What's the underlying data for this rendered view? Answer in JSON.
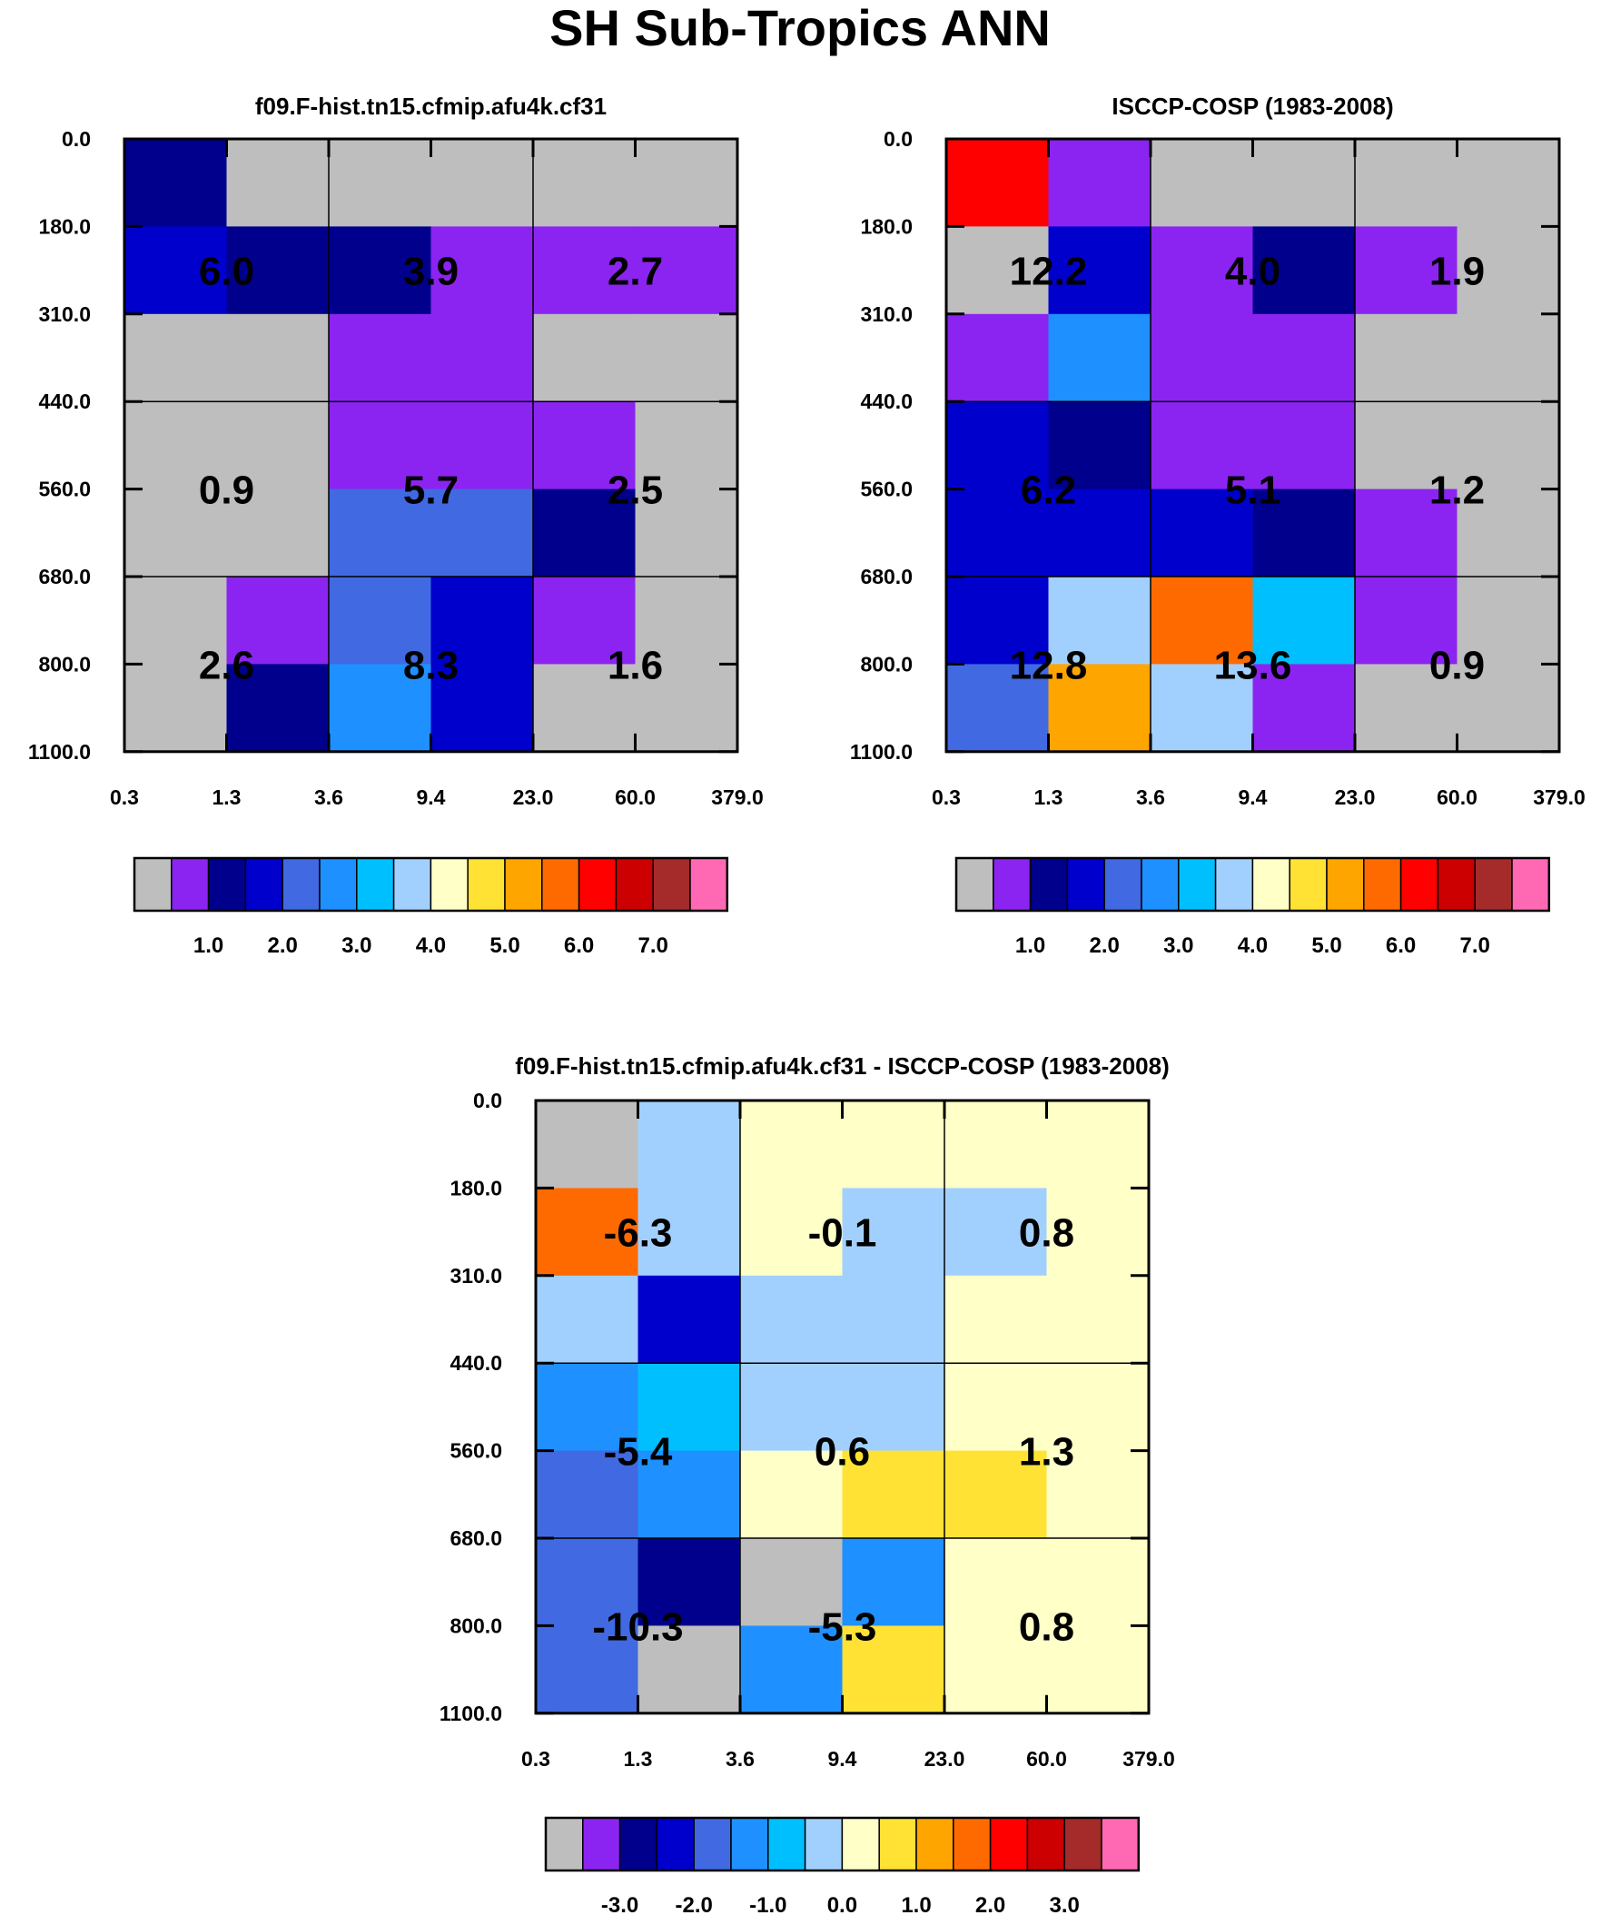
{
  "figure_title": "SH Sub-Tropics ANN",
  "colors": {
    "missing": "#bebebe",
    "scale": [
      "#bebebe",
      "#8b24f0",
      "#00008c",
      "#0000cd",
      "#4169e1",
      "#1e90ff",
      "#00bfff",
      "#a2d0fe",
      "#ffffc8",
      "#ffe234",
      "#ffa500",
      "#ff6a00",
      "#ff0000",
      "#cc0000",
      "#a52a2a",
      "#ff69b4"
    ]
  },
  "chart_data": [
    {
      "type": "heatmap",
      "title": "f09.F-hist.tn15.cfmip.afu4k.cf31",
      "x_ticks": [
        "0.3",
        "1.3",
        "3.6",
        "9.4",
        "23.0",
        "60.0",
        "379.0"
      ],
      "y_ticks": [
        "0.0",
        "180.0",
        "310.0",
        "440.0",
        "560.0",
        "680.0",
        "800.0",
        "1100.0"
      ],
      "cells": [
        [
          2,
          0,
          0,
          0,
          0,
          0
        ],
        [
          3,
          2,
          2,
          1,
          1,
          1
        ],
        [
          0,
          0,
          1,
          1,
          0,
          0
        ],
        [
          0,
          0,
          1,
          1,
          1,
          0
        ],
        [
          0,
          0,
          4,
          4,
          2,
          0
        ],
        [
          0,
          1,
          4,
          3,
          1,
          0
        ],
        [
          0,
          2,
          5,
          3,
          0,
          0
        ]
      ],
      "block_values": [
        [
          "6.0",
          "3.9",
          "2.7"
        ],
        [
          "0.9",
          "5.7",
          "2.5"
        ],
        [
          "2.6",
          "8.3",
          "1.6"
        ]
      ],
      "colorbar_labels": [
        "1.0",
        "2.0",
        "3.0",
        "4.0",
        "5.0",
        "6.0",
        "7.0"
      ]
    },
    {
      "type": "heatmap",
      "title": "ISCCP-COSP (1983-2008)",
      "x_ticks": [
        "0.3",
        "1.3",
        "3.6",
        "9.4",
        "23.0",
        "60.0",
        "379.0"
      ],
      "y_ticks": [
        "0.0",
        "180.0",
        "310.0",
        "440.0",
        "560.0",
        "680.0",
        "800.0",
        "1100.0"
      ],
      "cells": [
        [
          12,
          1,
          0,
          0,
          0,
          0
        ],
        [
          0,
          3,
          1,
          2,
          1,
          0
        ],
        [
          1,
          5,
          1,
          1,
          0,
          0
        ],
        [
          3,
          2,
          1,
          1,
          0,
          0
        ],
        [
          3,
          3,
          3,
          2,
          1,
          0
        ],
        [
          3,
          7,
          11,
          6,
          1,
          0
        ],
        [
          4,
          10,
          7,
          1,
          0,
          0
        ]
      ],
      "block_values": [
        [
          "12.2",
          "4.0",
          "1.9"
        ],
        [
          "6.2",
          "5.1",
          "1.2"
        ],
        [
          "12.8",
          "13.6",
          "0.9"
        ]
      ],
      "colorbar_labels": [
        "1.0",
        "2.0",
        "3.0",
        "4.0",
        "5.0",
        "6.0",
        "7.0"
      ]
    },
    {
      "type": "heatmap",
      "title": "f09.F-hist.tn15.cfmip.afu4k.cf31 - ISCCP-COSP (1983-2008)",
      "x_ticks": [
        "0.3",
        "1.3",
        "3.6",
        "9.4",
        "23.0",
        "60.0",
        "379.0"
      ],
      "y_ticks": [
        "0.0",
        "180.0",
        "310.0",
        "440.0",
        "560.0",
        "680.0",
        "800.0",
        "1100.0"
      ],
      "cells": [
        [
          0,
          7,
          8,
          8,
          8,
          8
        ],
        [
          11,
          7,
          8,
          7,
          7,
          8
        ],
        [
          7,
          3,
          7,
          7,
          8,
          8
        ],
        [
          5,
          6,
          7,
          7,
          8,
          8
        ],
        [
          4,
          5,
          8,
          9,
          9,
          8
        ],
        [
          4,
          2,
          0,
          5,
          8,
          8
        ],
        [
          4,
          0,
          5,
          9,
          8,
          8
        ]
      ],
      "block_values": [
        [
          "-6.3",
          "-0.1",
          "0.8"
        ],
        [
          "-5.4",
          "0.6",
          "1.3"
        ],
        [
          "-10.3",
          "-5.3",
          "0.8"
        ]
      ],
      "colorbar_labels": [
        "-3.0",
        "-2.0",
        "-1.0",
        "0.0",
        "1.0",
        "2.0",
        "3.0"
      ]
    }
  ]
}
